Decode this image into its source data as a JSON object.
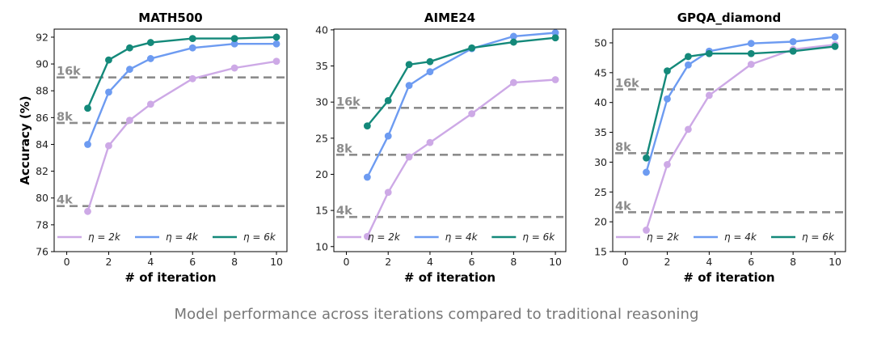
{
  "caption": "Model performance across iterations compared to traditional reasoning",
  "colors": {
    "eta_2k": "#cda9e6",
    "eta_4k": "#6d9bf1",
    "eta_6k": "#14897a",
    "reference_line": "#8c8c8c"
  },
  "chart_data": [
    {
      "type": "line",
      "title": "MATH500",
      "xlabel": "# of iteration",
      "ylabel": "Accuracy (%)",
      "xlim": [
        -0.6,
        10.5
      ],
      "ylim": [
        76,
        92.6
      ],
      "xticks": [
        0,
        2,
        4,
        6,
        8,
        10
      ],
      "yticks": [
        76,
        78,
        80,
        82,
        84,
        86,
        88,
        90,
        92
      ],
      "grid": false,
      "legend_position": "bottom",
      "series": [
        {
          "name": "η = 2k",
          "color": "#cda9e6",
          "x": [
            1,
            2,
            3,
            4,
            6,
            8,
            10
          ],
          "y": [
            79.0,
            83.9,
            85.8,
            87.0,
            88.9,
            89.7,
            90.2
          ]
        },
        {
          "name": "η = 4k",
          "color": "#6d9bf1",
          "x": [
            1,
            2,
            3,
            4,
            6,
            8,
            10
          ],
          "y": [
            84.0,
            87.9,
            89.6,
            90.4,
            91.2,
            91.5,
            91.5
          ]
        },
        {
          "name": "η = 6k",
          "color": "#14897a",
          "x": [
            1,
            2,
            3,
            4,
            6,
            8,
            10
          ],
          "y": [
            86.7,
            90.3,
            91.2,
            91.6,
            91.9,
            91.9,
            92.0
          ]
        }
      ],
      "reference_lines": [
        {
          "label": "16k",
          "y": 89.0
        },
        {
          "label": "8k",
          "y": 85.6
        },
        {
          "label": "4k",
          "y": 79.4
        }
      ]
    },
    {
      "type": "line",
      "title": "AIME24",
      "xlabel": "# of iteration",
      "ylabel": "",
      "xlim": [
        -0.6,
        10.5
      ],
      "ylim": [
        9.3,
        40.1
      ],
      "xticks": [
        0,
        2,
        4,
        6,
        8,
        10
      ],
      "yticks": [
        10,
        15,
        20,
        25,
        30,
        35,
        40
      ],
      "grid": false,
      "legend_position": "bottom",
      "series": [
        {
          "name": "η = 2k",
          "color": "#cda9e6",
          "x": [
            1,
            2,
            3,
            4,
            6,
            8,
            10
          ],
          "y": [
            11.4,
            17.5,
            22.4,
            24.4,
            28.4,
            32.7,
            33.1
          ]
        },
        {
          "name": "η = 4k",
          "color": "#6d9bf1",
          "x": [
            1,
            2,
            3,
            4,
            6,
            8,
            10
          ],
          "y": [
            19.6,
            25.3,
            32.3,
            34.2,
            37.4,
            39.1,
            39.6
          ]
        },
        {
          "name": "η = 6k",
          "color": "#14897a",
          "x": [
            1,
            2,
            3,
            4,
            6,
            8,
            10
          ],
          "y": [
            26.7,
            30.2,
            35.2,
            35.6,
            37.5,
            38.3,
            38.9
          ]
        }
      ],
      "reference_lines": [
        {
          "label": "16k",
          "y": 29.2
        },
        {
          "label": "8k",
          "y": 22.7
        },
        {
          "label": "4k",
          "y": 14.1
        }
      ]
    },
    {
      "type": "line",
      "title": "GPQA_diamond",
      "xlabel": "# of iteration",
      "ylabel": "",
      "xlim": [
        -0.6,
        10.5
      ],
      "ylim": [
        15,
        52.3
      ],
      "xticks": [
        0,
        2,
        4,
        6,
        8,
        10
      ],
      "yticks": [
        15,
        20,
        25,
        30,
        35,
        40,
        45,
        50
      ],
      "grid": false,
      "legend_position": "bottom",
      "series": [
        {
          "name": "η = 2k",
          "color": "#cda9e6",
          "x": [
            1,
            2,
            3,
            4,
            6,
            8,
            10
          ],
          "y": [
            18.6,
            29.6,
            35.5,
            41.2,
            46.4,
            48.9,
            49.7
          ]
        },
        {
          "name": "η = 4k",
          "color": "#6d9bf1",
          "x": [
            1,
            2,
            3,
            4,
            6,
            8,
            10
          ],
          "y": [
            28.3,
            40.6,
            46.3,
            48.6,
            49.9,
            50.2,
            51.0
          ]
        },
        {
          "name": "η = 6k",
          "color": "#14897a",
          "x": [
            1,
            2,
            3,
            4,
            6,
            8,
            10
          ],
          "y": [
            30.7,
            45.3,
            47.7,
            48.2,
            48.2,
            48.6,
            49.4
          ]
        }
      ],
      "reference_lines": [
        {
          "label": "16k",
          "y": 42.2
        },
        {
          "label": "8k",
          "y": 31.5
        },
        {
          "label": "4k",
          "y": 21.6
        }
      ]
    }
  ]
}
